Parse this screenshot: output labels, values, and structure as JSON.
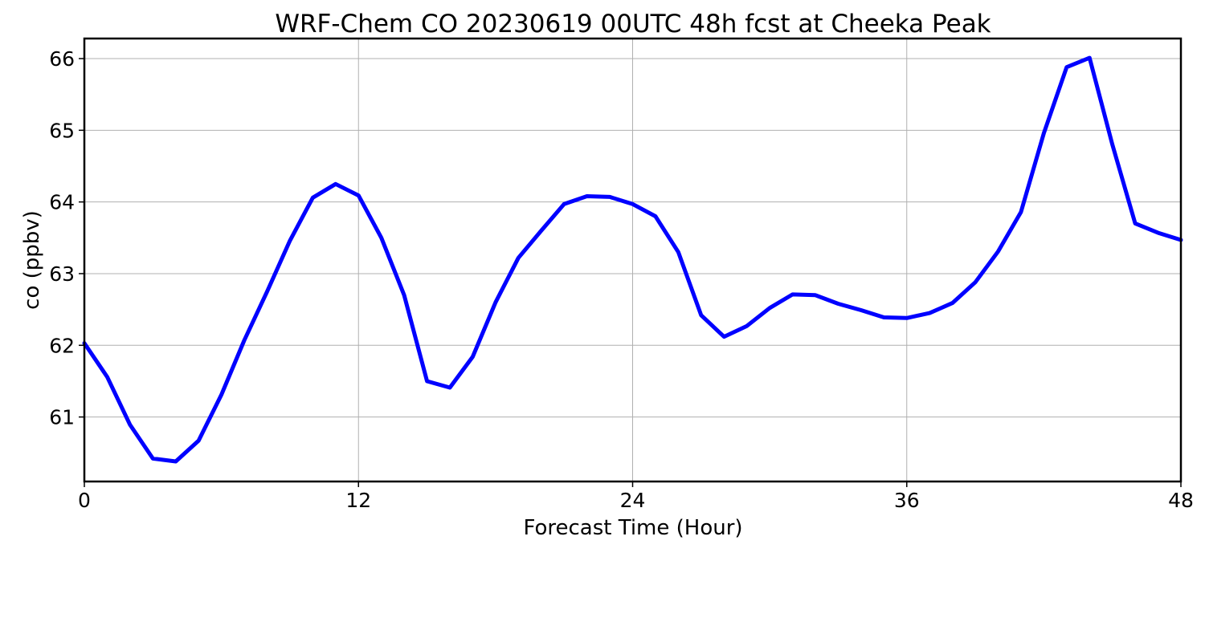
{
  "chart_data": {
    "type": "line",
    "title": "WRF-Chem CO  20230619 00UTC 48h fcst at Cheeka Peak",
    "xlabel": "Forecast Time (Hour)",
    "ylabel": "co  (ppbv)",
    "xlim": [
      0,
      48
    ],
    "ylim": [
      60.1,
      66.28
    ],
    "x_ticks": [
      0,
      12,
      24,
      36,
      48
    ],
    "y_ticks": [
      61,
      62,
      63,
      64,
      65,
      66
    ],
    "grid": true,
    "series_color": "#0000ff",
    "x": [
      0,
      1,
      2,
      3,
      4,
      5,
      6,
      7,
      8,
      9,
      10,
      11,
      12,
      13,
      14,
      15,
      16,
      17,
      18,
      19,
      20,
      21,
      22,
      23,
      24,
      25,
      26,
      27,
      28,
      29,
      30,
      31,
      32,
      33,
      34,
      35,
      36,
      37,
      38,
      39,
      40,
      41,
      42,
      43,
      44,
      45,
      46,
      47,
      48
    ],
    "series": [
      {
        "values": [
          62.03,
          61.56,
          60.89,
          60.42,
          60.38,
          60.67,
          61.31,
          62.07,
          62.75,
          63.46,
          64.06,
          64.25,
          64.09,
          63.5,
          62.7,
          61.5,
          61.41,
          61.84,
          62.6,
          63.22,
          63.6,
          63.97,
          64.08,
          64.07,
          63.97,
          63.8,
          63.3,
          62.42,
          62.12,
          62.27,
          62.52,
          62.71,
          62.7,
          62.58,
          62.49,
          62.39,
          62.38,
          62.45,
          62.59,
          62.88,
          63.31,
          63.86,
          64.96,
          65.88,
          66.01,
          64.8,
          63.7,
          63.57,
          63.47
        ]
      }
    ]
  }
}
